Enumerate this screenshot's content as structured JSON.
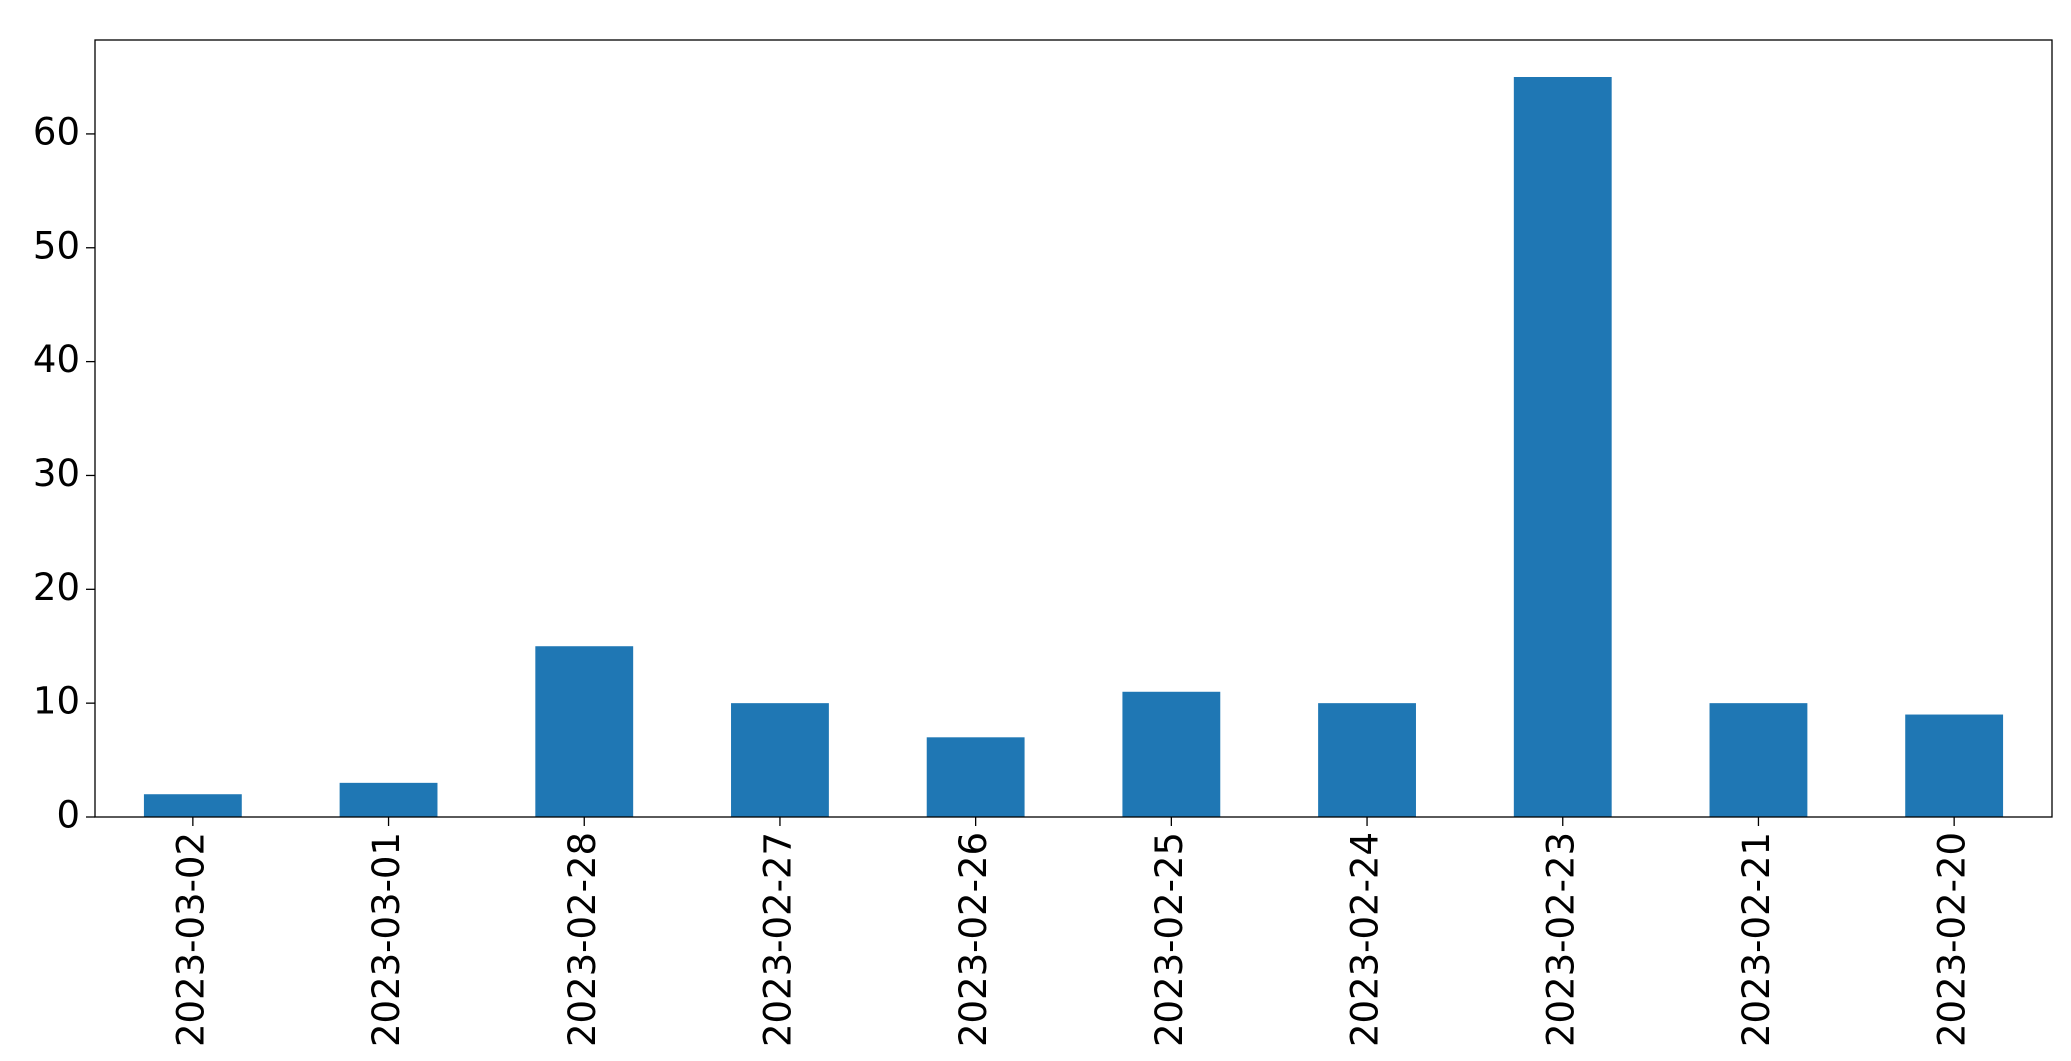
{
  "chart_data": {
    "type": "bar",
    "categories": [
      "2023-03-02",
      "2023-03-01",
      "2023-02-28",
      "2023-02-27",
      "2023-02-26",
      "2023-02-25",
      "2023-02-24",
      "2023-02-23",
      "2023-02-21",
      "2023-02-20"
    ],
    "values": [
      2,
      3,
      15,
      10,
      7,
      11,
      10,
      65,
      10,
      9
    ],
    "color": "#1f77b4",
    "ylim": [
      0,
      68.25
    ],
    "yticks": [
      0,
      10,
      20,
      30,
      40,
      50,
      60
    ],
    "grid": false
  }
}
